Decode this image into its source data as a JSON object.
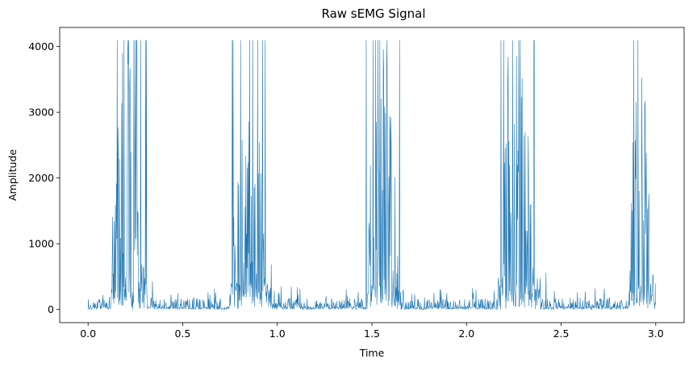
{
  "chart_data": {
    "type": "line",
    "title": "Raw sEMG Signal",
    "xlabel": "Time",
    "ylabel": "Amplitude",
    "xlim": [
      -0.15,
      3.15
    ],
    "ylim": [
      -200,
      4290
    ],
    "xticks": [
      0.0,
      0.5,
      1.0,
      1.5,
      2.0,
      2.5,
      3.0
    ],
    "xtick_labels": [
      "0.0",
      "0.5",
      "1.0",
      "1.5",
      "2.0",
      "2.5",
      "3.0"
    ],
    "yticks": [
      0,
      1000,
      2000,
      3000,
      4000
    ],
    "ytick_labels": [
      "0",
      "1000",
      "2000",
      "3000",
      "4000"
    ],
    "grid": false,
    "line_color": "#1f77b4",
    "series": [
      {
        "sampling": "dense raw signal, 0 to 3.0 s, clipped at 4095",
        "baseline_amplitude_range": [
          0,
          350
        ],
        "clip_level": 4095,
        "bursts": [
          {
            "start": 0.12,
            "end": 0.31,
            "peak": 4095
          },
          {
            "start": 0.75,
            "end": 0.97,
            "peak": 4095
          },
          {
            "start": 1.47,
            "end": 1.67,
            "peak": 4095
          },
          {
            "start": 2.16,
            "end": 2.39,
            "peak": 4095
          },
          {
            "start": 2.86,
            "end": 3.0,
            "peak": 4095
          }
        ]
      }
    ]
  }
}
